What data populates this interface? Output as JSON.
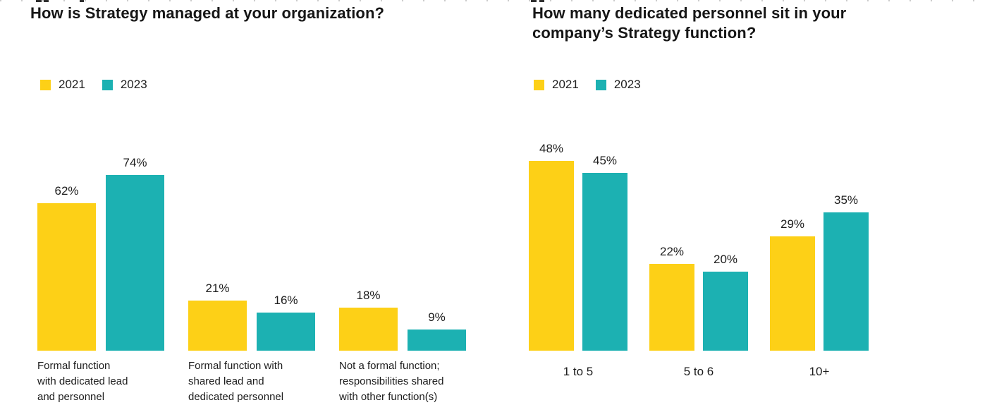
{
  "page": {
    "background": "#ffffff",
    "note": "report page with two grouped bar charts; a cropped line of text is partially visible at the top edge"
  },
  "colors": {
    "series_2021": "#FDD017",
    "series_2023": "#1CB1B2",
    "text": "#1a1a1a"
  },
  "chart_data": [
    {
      "type": "bar",
      "title": "How is Strategy managed at your organization?",
      "legend_position": "top-left",
      "legend_entries": [
        "2021",
        "2023"
      ],
      "value_suffix": "%",
      "axes_hidden": true,
      "grid": false,
      "data_labels": true,
      "categories": [
        "Formal function with dedicated lead and personnel",
        "Formal function with shared lead and dedicated personnel",
        "Not a formal function; responsibilities shared with other function(s)"
      ],
      "category_lines": [
        [
          "Formal function",
          "with dedicated lead",
          "and personnel"
        ],
        [
          "Formal function with",
          "shared lead and",
          "dedicated personnel"
        ],
        [
          "Not a formal function;",
          "responsibilities shared",
          "with other function(s)"
        ]
      ],
      "series": [
        {
          "name": "2021",
          "color": "#FDD017",
          "values": [
            62,
            21,
            18
          ]
        },
        {
          "name": "2023",
          "color": "#1CB1B2",
          "values": [
            74,
            16,
            9
          ]
        }
      ],
      "value_labels": [
        [
          "62%",
          "21%",
          "18%"
        ],
        [
          "74%",
          "16%",
          "9%"
        ]
      ],
      "ylim": [
        0,
        83
      ]
    },
    {
      "type": "bar",
      "title": "How many dedicated personnel sit in your company’s Strategy function?",
      "legend_position": "top-left",
      "legend_entries": [
        "2021",
        "2023"
      ],
      "value_suffix": "%",
      "axes_hidden": true,
      "grid": false,
      "data_labels": true,
      "categories": [
        "1 to 5",
        "5 to 6",
        "10+"
      ],
      "series": [
        {
          "name": "2021",
          "color": "#FDD017",
          "values": [
            48,
            22,
            29
          ]
        },
        {
          "name": "2023",
          "color": "#1CB1B2",
          "values": [
            45,
            20,
            35
          ]
        }
      ],
      "value_labels": [
        [
          "48%",
          "22%",
          "29%"
        ],
        [
          "45%",
          "20%",
          "35%"
        ]
      ],
      "ylim": [
        0,
        53
      ]
    }
  ]
}
